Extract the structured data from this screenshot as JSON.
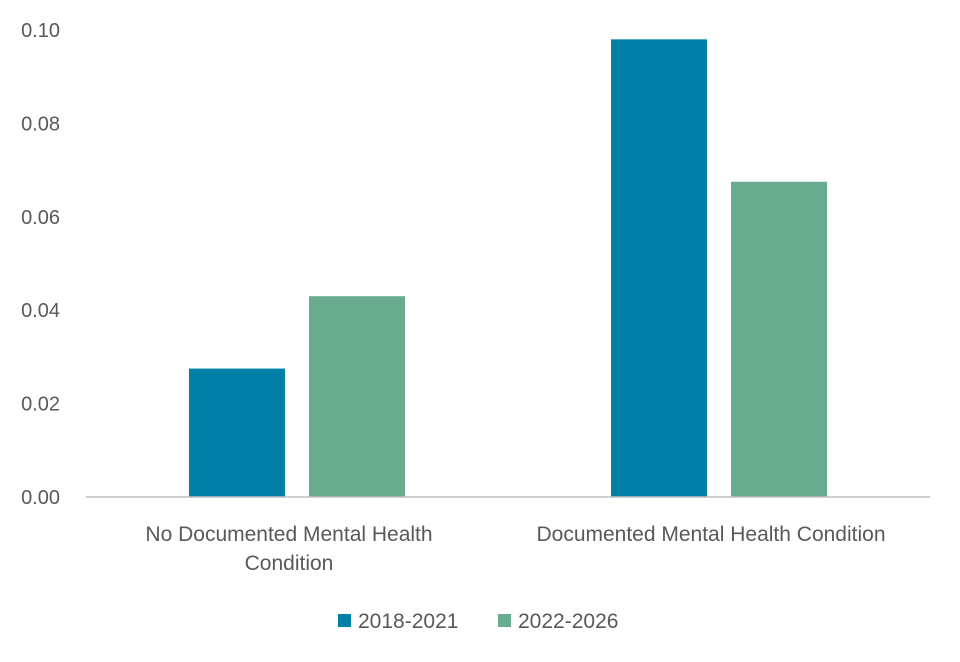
{
  "chart_data": {
    "type": "bar",
    "categories": [
      [
        "No Documented Mental Health",
        "Condition"
      ],
      [
        "Documented Mental Health Condition"
      ]
    ],
    "series": [
      {
        "name": "2018-2021",
        "color": "#0080A6",
        "values": [
          0.0275,
          0.098
        ]
      },
      {
        "name": "2022-2026",
        "color": "#69AB8F",
        "values": [
          0.043,
          0.0675
        ]
      }
    ],
    "yticks": [
      "0.00",
      "0.02",
      "0.04",
      "0.06",
      "0.08",
      "0.10"
    ],
    "ylim": [
      0,
      0.1
    ],
    "grid": false,
    "legend_position": "bottom",
    "title": "",
    "xlabel": "",
    "ylabel": ""
  }
}
